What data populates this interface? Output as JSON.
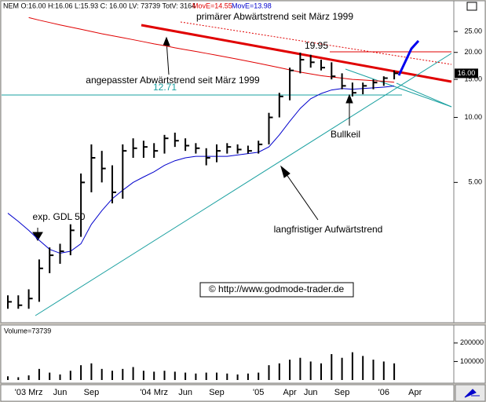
{
  "chart_data": {
    "type": "ohlc",
    "header": "NEM O:16.00 H:16.06 L:15.93 C: 16.00 LV: 73739 TotV: 3164",
    "ma_labels": [
      {
        "text": "MovE=14.55",
        "color": "#e00000"
      },
      {
        "text": "MovE=13.98",
        "color": "#0000cc"
      }
    ],
    "categories": [
      null,
      null,
      "'03 Mrz",
      null,
      null,
      "Jun",
      null,
      null,
      "Sep",
      null,
      null,
      null,
      null,
      null,
      "'04 Mrz",
      null,
      null,
      "Jun",
      null,
      null,
      "Sep",
      null,
      null,
      null,
      "'05",
      null,
      null,
      "Apr",
      null,
      "Jun",
      null,
      null,
      "Sep",
      null,
      null,
      null,
      "'06",
      null,
      null,
      "Apr"
    ],
    "high": [
      1.5,
      1.5,
      1.6,
      2.2,
      2.5,
      2.6,
      3.2,
      5.5,
      7.5,
      7.0,
      6.0,
      7.5,
      8.0,
      7.8,
      7.6,
      8.3,
      8.5,
      8.0,
      7.6,
      7.2,
      7.5,
      7.6,
      7.5,
      7.4,
      7.8,
      10.5,
      13.0,
      17.0,
      19.95,
      19.5,
      18.5,
      18.0,
      16.0,
      14.5,
      14.5,
      15.0,
      15.5,
      16.5,
      null,
      null
    ],
    "low": [
      1.3,
      1.3,
      1.3,
      1.4,
      1.9,
      2.1,
      2.3,
      2.8,
      4.5,
      5.0,
      4.0,
      4.2,
      6.5,
      6.5,
      6.5,
      6.8,
      7.3,
      7.0,
      6.8,
      6.0,
      6.2,
      6.8,
      6.8,
      6.8,
      6.8,
      7.5,
      10.0,
      12.0,
      16.0,
      17.0,
      16.5,
      15.0,
      13.5,
      12.5,
      12.8,
      13.5,
      14.0,
      15.0,
      null,
      null
    ],
    "close": [
      1.4,
      1.35,
      1.45,
      2.0,
      2.3,
      2.4,
      3.0,
      5.0,
      6.5,
      5.8,
      4.5,
      7.0,
      7.2,
      7.3,
      7.0,
      8.0,
      7.8,
      7.4,
      7.2,
      6.5,
      7.0,
      7.3,
      7.1,
      7.0,
      7.5,
      10.0,
      12.5,
      16.5,
      18.5,
      18.0,
      17.0,
      15.5,
      14.0,
      13.0,
      14.0,
      14.5,
      15.2,
      16.0,
      null,
      null
    ],
    "moving_averages": [
      {
        "color": "#e00000",
        "values": [
          null,
          null,
          29.0,
          28.2,
          27.5,
          26.8,
          26.2,
          25.6,
          25.0,
          24.4,
          23.9,
          23.4,
          22.9,
          22.4,
          21.9,
          21.5,
          21.0,
          20.6,
          20.2,
          19.8,
          19.4,
          19.0,
          18.6,
          18.2,
          17.8,
          17.4,
          17.0,
          16.6,
          16.2,
          15.9,
          15.6,
          15.4,
          15.2,
          15.0,
          14.9,
          14.8,
          14.7,
          14.55,
          null,
          null
        ]
      },
      {
        "color": "#0000cc",
        "values": [
          3.6,
          3.3,
          3.0,
          2.7,
          2.45,
          2.35,
          2.4,
          2.6,
          3.2,
          3.7,
          4.2,
          4.6,
          5.0,
          5.3,
          5.6,
          6.0,
          6.3,
          6.5,
          6.6,
          6.6,
          6.6,
          6.6,
          6.7,
          6.8,
          6.9,
          7.3,
          8.3,
          9.6,
          11.0,
          12.2,
          12.9,
          13.4,
          13.6,
          13.5,
          13.6,
          13.7,
          13.8,
          13.98,
          null,
          null
        ]
      }
    ],
    "ylim": [
      1.13,
      32.7
    ],
    "log_scale": true,
    "yticks": [
      {
        "value": 25,
        "label": "25.00"
      },
      {
        "value": 20,
        "label": "20.00"
      },
      {
        "value": 15,
        "label": "15.00"
      },
      {
        "value": 10,
        "label": "10.00"
      },
      {
        "value": 5,
        "label": "5.00"
      }
    ],
    "last_price": {
      "value": 16,
      "label": "16.00"
    },
    "annotations": [
      "primärer Abwärtstrend seit März 1999",
      "angepasster Abwärtstrend seit März 1999",
      "12.71",
      "19.95",
      "Bullkeil",
      "exp. GDL 50",
      "langfristiger Aufwärtstrend",
      "© http://www.godmode-trader.de"
    ],
    "volume": {
      "label": "Volume=73739",
      "color": "#000000",
      "values": [
        20000,
        15000,
        25000,
        60000,
        40000,
        30000,
        50000,
        80000,
        90000,
        60000,
        50000,
        60000,
        70000,
        50000,
        45000,
        50000,
        45000,
        40000,
        35000,
        40000,
        40000,
        35000,
        30000,
        35000,
        40000,
        80000,
        90000,
        110000,
        120000,
        100000,
        90000,
        140000,
        120000,
        150000,
        130000,
        110000,
        100000,
        90000,
        null,
        null
      ],
      "ylim": [
        0,
        280000
      ],
      "yticks": [
        200000,
        100000
      ]
    }
  }
}
